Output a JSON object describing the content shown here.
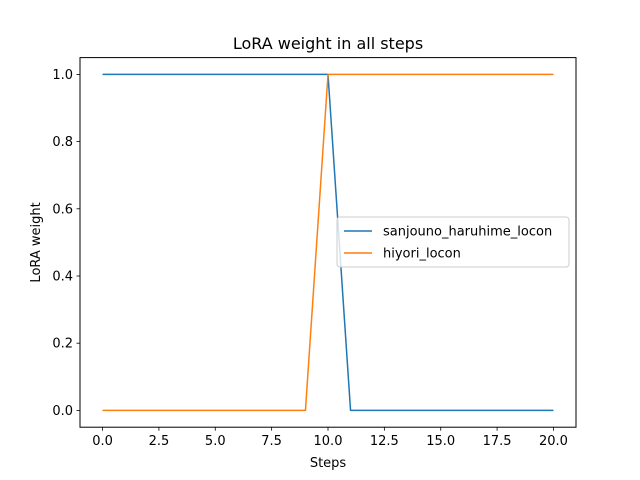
{
  "chart_data": {
    "type": "line",
    "title": "LoRA weight in all steps",
    "xlabel": "Steps",
    "ylabel": "LoRA weight",
    "xlim": [
      -1.0,
      21.0
    ],
    "ylim": [
      -0.05,
      1.05
    ],
    "xticks": [
      0.0,
      2.5,
      5.0,
      7.5,
      10.0,
      12.5,
      15.0,
      17.5,
      20.0
    ],
    "xtick_labels": [
      "0.0",
      "2.5",
      "5.0",
      "7.5",
      "10.0",
      "12.5",
      "15.0",
      "17.5",
      "20.0"
    ],
    "yticks": [
      0.0,
      0.2,
      0.4,
      0.6,
      0.8,
      1.0
    ],
    "ytick_labels": [
      "0.0",
      "0.2",
      "0.4",
      "0.6",
      "0.8",
      "1.0"
    ],
    "grid": false,
    "legend_position": "center-right",
    "series": [
      {
        "name": "sanjouno_haruhime_locon",
        "color": "#1f77b4",
        "x": [
          0,
          1,
          2,
          3,
          4,
          5,
          6,
          7,
          8,
          9,
          10,
          11,
          12,
          13,
          14,
          15,
          16,
          17,
          18,
          19,
          20
        ],
        "y": [
          1,
          1,
          1,
          1,
          1,
          1,
          1,
          1,
          1,
          1,
          1,
          0,
          0,
          0,
          0,
          0,
          0,
          0,
          0,
          0,
          0
        ]
      },
      {
        "name": "hiyori_locon",
        "color": "#ff7f0e",
        "x": [
          0,
          1,
          2,
          3,
          4,
          5,
          6,
          7,
          8,
          9,
          10,
          11,
          12,
          13,
          14,
          15,
          16,
          17,
          18,
          19,
          20
        ],
        "y": [
          0,
          0,
          0,
          0,
          0,
          0,
          0,
          0,
          0,
          0,
          1,
          1,
          1,
          1,
          1,
          1,
          1,
          1,
          1,
          1,
          1
        ]
      }
    ]
  }
}
